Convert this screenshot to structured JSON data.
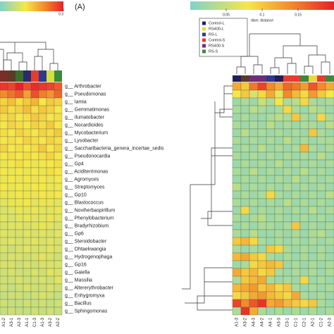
{
  "chart_data": [
    {
      "type": "heatmap",
      "panel_label": "(A)",
      "rows": [
        "g__ Arthrobacter",
        "g__ Pseudomonas",
        "g__ Iamia",
        "g__ Gemmatimonas",
        "g__ Ilumatobacter",
        "g__ Nocardioides",
        "g__ Mycobacterium",
        "g__ Lysobacter",
        "g__ Saccharibacteria_genera_incertae_sedis",
        "g__ Pseudonocardia",
        "g__ Gp4",
        "g__ Aciditerrimonas",
        "g__ Agromyces",
        "g__ Streptomyces",
        "g__ Gp10",
        "g__ Blastococcus",
        "g__ Noviherbaspirillum",
        "g__ Phenylobacterium",
        "g__ Bradyrhizobium",
        "g__ Gp6",
        "g__ Steroidobacter",
        "g__ Ohtaekwangia",
        "g__ Hydrogenophaga",
        "g__ Gp16",
        "g__ Gaiella",
        "g__ Massilia",
        "g__ Altererythrobacter",
        "g__ Enhygromyxa",
        "g__ Bacillus",
        "g__ Sphingomonas"
      ],
      "categories": [
        "A1-2",
        "A3-1",
        "A2-3",
        "A1-1",
        "C1-3",
        "A1-3",
        "A3-2",
        "A2-2"
      ],
      "column_colors": [
        "#7b2d26",
        "#5b3a29",
        "#3a6e2a",
        "#2b2b6b",
        "#e63c2e",
        "#2d3a8c",
        "#d0e040",
        "#3a8a3a"
      ],
      "zlim": [
        0,
        0.3
      ],
      "zticks": [
        0.3
      ],
      "values": [
        [
          0.28,
          0.27,
          0.3,
          0.26,
          0.29,
          0.28,
          0.27,
          0.25
        ],
        [
          0.21,
          0.23,
          0.25,
          0.19,
          0.26,
          0.22,
          0.2,
          0.24
        ],
        [
          0.14,
          0.16,
          0.13,
          0.15,
          0.17,
          0.12,
          0.15,
          0.14
        ],
        [
          0.15,
          0.13,
          0.14,
          0.16,
          0.13,
          0.15,
          0.14,
          0.12
        ],
        [
          0.13,
          0.14,
          0.12,
          0.13,
          0.15,
          0.14,
          0.12,
          0.13
        ],
        [
          0.12,
          0.14,
          0.13,
          0.12,
          0.14,
          0.13,
          0.15,
          0.12
        ],
        [
          0.13,
          0.12,
          0.14,
          0.13,
          0.12,
          0.14,
          0.13,
          0.15
        ],
        [
          0.12,
          0.13,
          0.12,
          0.14,
          0.13,
          0.12,
          0.14,
          0.13
        ],
        [
          0.14,
          0.12,
          0.13,
          0.12,
          0.13,
          0.15,
          0.12,
          0.14
        ],
        [
          0.12,
          0.13,
          0.12,
          0.13,
          0.12,
          0.13,
          0.14,
          0.12
        ],
        [
          0.11,
          0.12,
          0.13,
          0.12,
          0.11,
          0.12,
          0.12,
          0.13
        ],
        [
          0.12,
          0.11,
          0.12,
          0.11,
          0.12,
          0.11,
          0.13,
          0.12
        ],
        [
          0.11,
          0.12,
          0.11,
          0.12,
          0.11,
          0.12,
          0.11,
          0.12
        ],
        [
          0.12,
          0.11,
          0.12,
          0.11,
          0.12,
          0.12,
          0.11,
          0.11
        ],
        [
          0.11,
          0.11,
          0.12,
          0.11,
          0.11,
          0.12,
          0.11,
          0.12
        ],
        [
          0.1,
          0.11,
          0.11,
          0.12,
          0.1,
          0.11,
          0.11,
          0.1
        ],
        [
          0.09,
          0.1,
          0.11,
          0.1,
          0.11,
          0.1,
          0.1,
          0.11
        ],
        [
          0.1,
          0.09,
          0.1,
          0.11,
          0.1,
          0.1,
          0.11,
          0.1
        ],
        [
          0.09,
          0.1,
          0.1,
          0.09,
          0.1,
          0.11,
          0.1,
          0.09
        ],
        [
          0.1,
          0.09,
          0.09,
          0.1,
          0.09,
          0.1,
          0.09,
          0.1
        ],
        [
          0.09,
          0.1,
          0.09,
          0.09,
          0.1,
          0.09,
          0.1,
          0.09
        ],
        [
          0.09,
          0.08,
          0.09,
          0.1,
          0.09,
          0.09,
          0.1,
          0.09
        ],
        [
          0.08,
          0.09,
          0.09,
          0.08,
          0.09,
          0.1,
          0.09,
          0.08
        ],
        [
          0.09,
          0.09,
          0.08,
          0.09,
          0.08,
          0.09,
          0.09,
          0.09
        ],
        [
          0.08,
          0.09,
          0.08,
          0.08,
          0.09,
          0.08,
          0.1,
          0.09
        ],
        [
          0.08,
          0.08,
          0.09,
          0.08,
          0.08,
          0.09,
          0.08,
          0.1
        ],
        [
          0.08,
          0.07,
          0.08,
          0.09,
          0.08,
          0.08,
          0.09,
          0.08
        ],
        [
          0.07,
          0.08,
          0.08,
          0.07,
          0.08,
          0.09,
          0.08,
          0.07
        ],
        [
          0.08,
          0.07,
          0.07,
          0.08,
          0.07,
          0.08,
          0.07,
          0.08
        ],
        [
          0.07,
          0.08,
          0.07,
          0.07,
          0.08,
          0.07,
          0.08,
          0.07
        ]
      ]
    },
    {
      "type": "heatmap",
      "colorbar_label": "dism. distance",
      "legend": [
        {
          "name": "Control-L",
          "color": "#1f1f5c"
        },
        {
          "name": "RS400-L",
          "color": "#e8d83a"
        },
        {
          "name": "RS-L",
          "color": "#2d3a8c"
        },
        {
          "name": "Control-S",
          "color": "#e63c2e"
        },
        {
          "name": "RS400-S",
          "color": "#6b2d7c"
        },
        {
          "name": "RS-S",
          "color": "#3a8a3a"
        }
      ],
      "categories": [
        "A1-3",
        "A3-2",
        "A4-3",
        "A4-2",
        "A4-1",
        "A3-3",
        "C3-1",
        "C1-1",
        "C2-1",
        "A2-1",
        "C1-2",
        "A2-3"
      ],
      "column_colors": [
        "#1f1f5c",
        "#5b3a29",
        "#6b2d7c",
        "#6b2d7c",
        "#2d3a8c",
        "#1f1f5c",
        "#e63c2e",
        "#e63c2e",
        "#3a8a3a",
        "#e8d83a",
        "#e63c2e",
        "#3a8a3a"
      ],
      "zlim": [
        0,
        0.2
      ],
      "zticks": [
        0.05,
        0.1,
        0.15
      ],
      "values": [
        [
          0.12,
          0.1,
          0.15,
          0.18,
          0.14,
          0.12,
          0.16,
          0.15,
          0.13,
          0.17,
          0.14,
          0.12
        ],
        [
          0.08,
          0.1,
          0.06,
          0.09,
          0.12,
          0.07,
          0.14,
          0.11,
          0.09,
          0.13,
          0.1,
          0.08
        ],
        [
          0.02,
          0.03,
          0.02,
          0.05,
          0.03,
          0.08,
          0.03,
          0.04,
          0.09,
          0.03,
          0.02,
          0.03
        ],
        [
          0.03,
          0.02,
          0.04,
          0.03,
          0.02,
          0.03,
          0.09,
          0.03,
          0.02,
          0.04,
          0.03,
          0.02
        ],
        [
          0.02,
          0.03,
          0.02,
          0.02,
          0.03,
          0.04,
          0.03,
          0.1,
          0.03,
          0.02,
          0.09,
          0.03
        ],
        [
          0.03,
          0.02,
          0.03,
          0.02,
          0.04,
          0.02,
          0.03,
          0.02,
          0.03,
          0.03,
          0.02,
          0.04
        ],
        [
          0.02,
          0.04,
          0.02,
          0.03,
          0.02,
          0.03,
          0.02,
          0.03,
          0.02,
          0.1,
          0.03,
          0.02
        ],
        [
          0.03,
          0.02,
          0.03,
          0.02,
          0.03,
          0.02,
          0.04,
          0.02,
          0.03,
          0.02,
          0.03,
          0.03
        ],
        [
          0.02,
          0.03,
          0.02,
          0.04,
          0.02,
          0.03,
          0.02,
          0.03,
          0.11,
          0.03,
          0.02,
          0.03
        ],
        [
          0.03,
          0.02,
          0.03,
          0.02,
          0.03,
          0.02,
          0.03,
          0.02,
          0.03,
          0.02,
          0.04,
          0.02
        ],
        [
          0.02,
          0.03,
          0.02,
          0.03,
          0.02,
          0.04,
          0.02,
          0.03,
          0.02,
          0.03,
          0.02,
          0.03
        ],
        [
          0.03,
          0.02,
          0.04,
          0.02,
          0.03,
          0.02,
          0.03,
          0.02,
          0.04,
          0.02,
          0.03,
          0.02
        ],
        [
          0.02,
          0.03,
          0.02,
          0.03,
          0.02,
          0.03,
          0.02,
          0.04,
          0.02,
          0.03,
          0.02,
          0.03
        ],
        [
          0.04,
          0.02,
          0.03,
          0.02,
          0.03,
          0.02,
          0.03,
          0.02,
          0.03,
          0.02,
          0.03,
          0.02
        ],
        [
          0.02,
          0.03,
          0.02,
          0.03,
          0.09,
          0.03,
          0.02,
          0.03,
          0.02,
          0.03,
          0.02,
          0.04
        ],
        [
          0.03,
          0.02,
          0.03,
          0.02,
          0.03,
          0.02,
          0.04,
          0.02,
          0.03,
          0.02,
          0.03,
          0.02
        ],
        [
          0.02,
          0.09,
          0.02,
          0.03,
          0.02,
          0.03,
          0.02,
          0.03,
          0.02,
          0.04,
          0.02,
          0.03
        ],
        [
          0.03,
          0.02,
          0.03,
          0.04,
          0.02,
          0.03,
          0.02,
          0.02,
          0.03,
          0.02,
          0.03,
          0.02
        ],
        [
          0.02,
          0.03,
          0.02,
          0.03,
          0.03,
          0.02,
          0.03,
          0.1,
          0.02,
          0.03,
          0.02,
          0.03
        ],
        [
          0.03,
          0.02,
          0.04,
          0.02,
          0.02,
          0.03,
          0.02,
          0.03,
          0.02,
          0.03,
          0.04,
          0.02
        ],
        [
          0.1,
          0.11,
          0.09,
          0.03,
          0.02,
          0.03,
          0.02,
          0.03,
          0.02,
          0.03,
          0.02,
          0.03
        ],
        [
          0.03,
          0.02,
          0.03,
          0.02,
          0.1,
          0.09,
          0.03,
          0.02,
          0.03,
          0.02,
          0.03,
          0.02
        ],
        [
          0.11,
          0.12,
          0.1,
          0.09,
          0.03,
          0.02,
          0.03,
          0.02,
          0.03,
          0.02,
          0.03,
          0.02
        ],
        [
          0.02,
          0.03,
          0.09,
          0.1,
          0.11,
          0.1,
          0.02,
          0.03,
          0.02,
          0.03,
          0.02,
          0.03
        ],
        [
          0.12,
          0.1,
          0.11,
          0.09,
          0.1,
          0.03,
          0.02,
          0.03,
          0.02,
          0.03,
          0.02,
          0.03
        ],
        [
          0.03,
          0.1,
          0.11,
          0.12,
          0.03,
          0.02,
          0.03,
          0.02,
          0.09,
          0.02,
          0.03,
          0.02
        ],
        [
          0.11,
          0.12,
          0.13,
          0.1,
          0.11,
          0.09,
          0.1,
          0.03,
          0.02,
          0.03,
          0.02,
          0.03
        ],
        [
          0.09,
          0.1,
          0.12,
          0.13,
          0.11,
          0.1,
          0.09,
          0.12,
          0.03,
          0.02,
          0.03,
          0.02
        ],
        [
          0.18,
          0.14,
          0.17,
          0.19,
          0.12,
          0.13,
          0.11,
          0.1,
          0.09,
          0.1,
          0.03,
          0.02
        ],
        [
          0.03,
          0.19,
          0.12,
          0.03,
          0.02,
          0.03,
          0.02,
          0.03,
          0.02,
          0.03,
          0.02,
          0.03
        ]
      ]
    }
  ]
}
